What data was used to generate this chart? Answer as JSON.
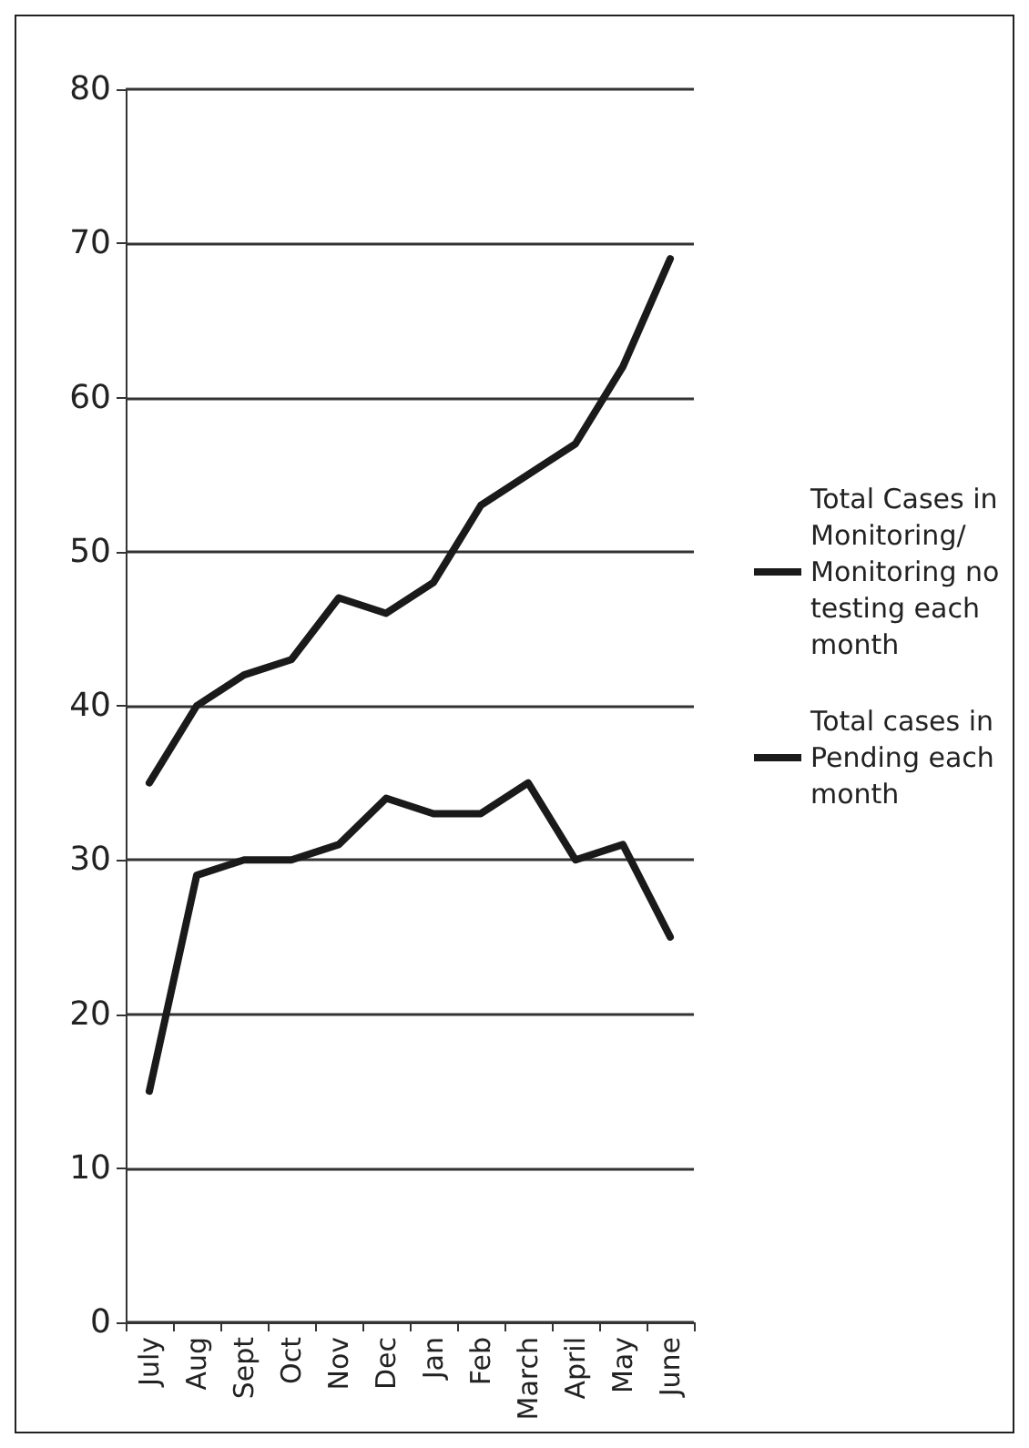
{
  "chart_data": {
    "type": "line",
    "categories": [
      "July",
      "Aug",
      "Sept",
      "Oct",
      "Nov",
      "Dec",
      "Jan",
      "Feb",
      "March",
      "April",
      "May",
      "June"
    ],
    "series": [
      {
        "name": "Total Cases in Monitoring/ Monitoring no testing each month",
        "color": "#1a1a1a",
        "values": [
          35,
          40,
          42,
          43,
          47,
          46,
          48,
          53,
          55,
          57,
          62,
          69
        ]
      },
      {
        "name": "Total cases in Pending each month",
        "color": "#1a1a1a",
        "values": [
          15,
          29,
          30,
          30,
          31,
          34,
          33,
          33,
          35,
          30,
          31,
          25
        ]
      }
    ],
    "ylim": [
      0,
      80
    ],
    "yticks": [
      0,
      10,
      20,
      30,
      40,
      50,
      60,
      70,
      80
    ],
    "grid": "y",
    "legend": "right",
    "marker": "none",
    "line_style": "solid"
  }
}
